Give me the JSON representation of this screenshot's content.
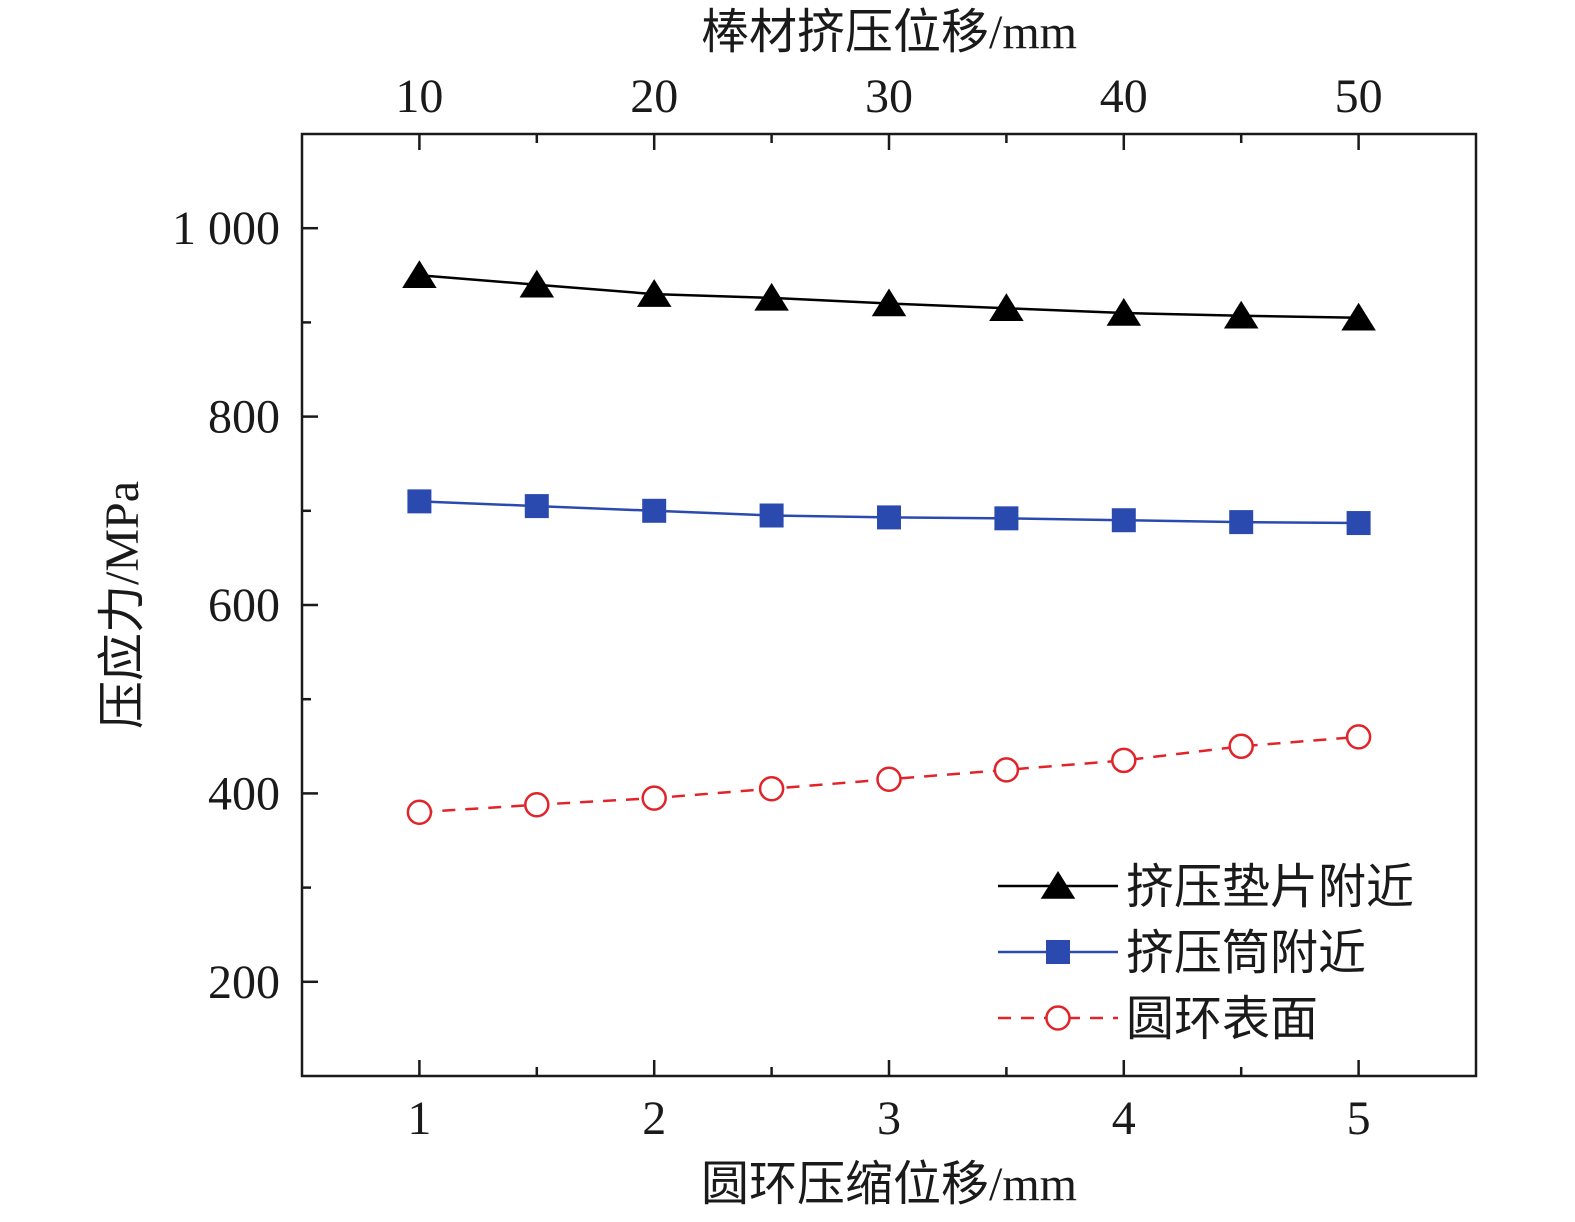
{
  "chart_data": {
    "type": "line",
    "xlabel": "圆环压缩位移/mm",
    "x2label": "棒材挤压位移/mm",
    "ylabel": "压应力/MPa",
    "xlim": [
      0.5,
      5.5
    ],
    "ylim": [
      100,
      1100
    ],
    "x_ticks": [
      "1",
      "2",
      "3",
      "4",
      "5"
    ],
    "x2_ticks": [
      "10",
      "20",
      "30",
      "40",
      "50"
    ],
    "y_ticks": [
      "200",
      "400",
      "600",
      "800",
      "1 000"
    ],
    "legend_position": "bottom-right",
    "grid": false,
    "x": [
      1,
      1.5,
      2,
      2.5,
      3,
      3.5,
      4,
      4.5,
      5
    ],
    "series": [
      {
        "name": "挤压垫片附近",
        "marker": "triangle-filled",
        "line": "solid",
        "color": "#000000",
        "values": [
          950,
          940,
          930,
          926,
          920,
          915,
          910,
          907,
          905
        ]
      },
      {
        "name": "挤压筒附近",
        "marker": "square-filled",
        "line": "solid",
        "color": "#2b4ab0",
        "values": [
          710,
          705,
          700,
          695,
          693,
          692,
          690,
          688,
          687
        ]
      },
      {
        "name": "圆环表面",
        "marker": "circle-open",
        "line": "dashed",
        "color": "#e0242a",
        "values": [
          380,
          388,
          395,
          405,
          415,
          425,
          435,
          450,
          460
        ]
      }
    ]
  }
}
